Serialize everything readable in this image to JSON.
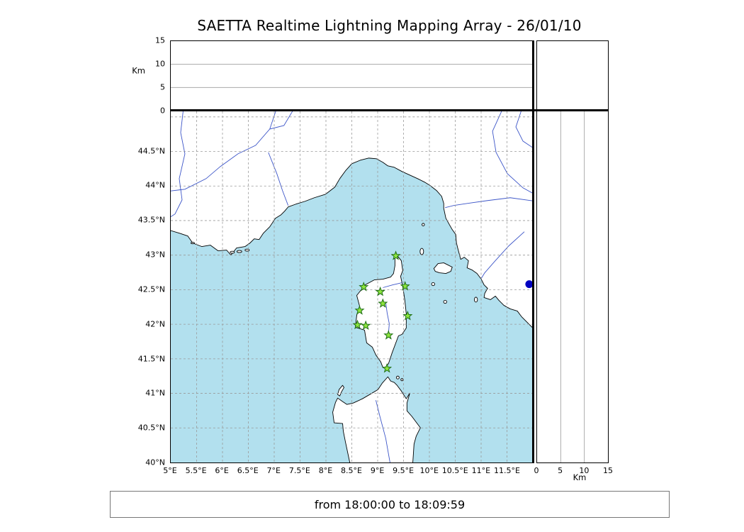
{
  "chart_data": {
    "type": "scatter",
    "title": "SAETTA Realtime Lightning Mapping Array - 26/01/10",
    "time_window": "from 18:00:00 to 18:09:59",
    "map_panel": {
      "region": "Corsica and surrounding Mediterranean (S. France, NW Italy, Sardinia, Tuscan islands)",
      "lon_axis": {
        "labels": [
          "5°E",
          "5.5°E",
          "6°E",
          "6.5°E",
          "7°E",
          "7.5°E",
          "8°E",
          "8.5°E",
          "9°E",
          "9.5°E",
          "10°E",
          "10.5°E",
          "11°E",
          "11.5°E"
        ],
        "values": [
          5,
          5.5,
          6,
          6.5,
          7,
          7.5,
          8,
          8.5,
          9,
          9.5,
          10,
          10.5,
          11,
          11.5
        ],
        "range": [
          5,
          12
        ]
      },
      "lat_axis": {
        "labels": [
          "40°N",
          "40.5°N",
          "41°N",
          "41.5°N",
          "42°N",
          "42.5°N",
          "43°N",
          "43.5°N",
          "44°N",
          "44.5°N"
        ],
        "values": [
          40,
          40.5,
          41,
          41.5,
          42,
          42.5,
          43,
          43.5,
          44,
          44.5
        ],
        "range": [
          40,
          45.08
        ]
      },
      "grid_style": "dashed 0.5deg",
      "grid_lons": [
        5.5,
        6,
        6.5,
        7,
        7.5,
        8,
        8.5,
        9,
        9.5,
        10,
        10.5,
        11,
        11.5
      ],
      "grid_lats": [
        40.5,
        41,
        41.5,
        42,
        42.5,
        43,
        43.5,
        44,
        44.5,
        45
      ]
    },
    "altitude_axis": {
      "unit": "Km",
      "tick_labels": [
        "0",
        "5",
        "10",
        "15"
      ],
      "values": [
        0,
        5,
        10,
        15
      ],
      "range": [
        0,
        15
      ],
      "gridlines": [
        5,
        10
      ]
    },
    "stations": [
      {
        "lon": 9.35,
        "lat": 42.99
      },
      {
        "lon": 8.73,
        "lat": 42.54
      },
      {
        "lon": 9.05,
        "lat": 42.47
      },
      {
        "lon": 9.53,
        "lat": 42.55
      },
      {
        "lon": 9.1,
        "lat": 42.3
      },
      {
        "lon": 8.65,
        "lat": 42.2
      },
      {
        "lon": 9.58,
        "lat": 42.12
      },
      {
        "lon": 8.61,
        "lat": 41.99
      },
      {
        "lon": 8.77,
        "lat": 41.98
      },
      {
        "lon": 9.21,
        "lat": 41.84
      },
      {
        "lon": 9.18,
        "lat": 41.36
      }
    ],
    "sensor_marker": {
      "lon": 11.93,
      "lat": 42.58
    },
    "colors": {
      "sea": "#b2e0ee",
      "land": "#ffffff",
      "coast": "#000000",
      "river": "#3c55c8",
      "grid": "#999999",
      "panel_grid": "#aaaaaa",
      "station_fill": "#8ee63e",
      "station_stroke": "#1e6e14",
      "marker": "#0000c0"
    }
  }
}
